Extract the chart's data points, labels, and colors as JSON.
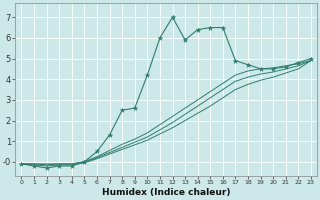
{
  "xlabel": "Humidex (Indice chaleur)",
  "ylabel": "",
  "bg_color": "#cce8e8",
  "line_color": "#2e7d6e",
  "grid_color": "#ffffff",
  "xlim": [
    -0.5,
    23.5
  ],
  "ylim": [
    -0.7,
    7.7
  ],
  "yticks": [
    0,
    1,
    2,
    3,
    4,
    5,
    6,
    7
  ],
  "ytick_labels": [
    "-0",
    "1",
    "2",
    "3",
    "4",
    "5",
    "6",
    "7"
  ],
  "xticks": [
    0,
    1,
    2,
    3,
    4,
    5,
    6,
    7,
    8,
    9,
    10,
    11,
    12,
    13,
    14,
    15,
    16,
    17,
    18,
    19,
    20,
    21,
    22,
    23
  ],
  "series": [
    {
      "x": [
        0,
        1,
        2,
        3,
        4,
        5,
        6,
        7,
        8,
        9,
        10,
        11,
        12,
        13,
        14,
        15,
        16,
        17,
        18,
        19,
        20,
        21,
        22,
        23
      ],
      "y": [
        -0.1,
        -0.2,
        -0.3,
        -0.2,
        -0.2,
        0.0,
        0.5,
        1.3,
        2.5,
        2.6,
        4.2,
        6.0,
        7.0,
        5.9,
        6.4,
        6.5,
        6.5,
        4.9,
        4.7,
        4.5,
        4.5,
        4.6,
        4.8,
        5.0
      ],
      "marker": true
    },
    {
      "x": [
        0,
        1,
        2,
        3,
        4,
        5,
        6,
        7,
        8,
        9,
        10,
        11,
        12,
        13,
        14,
        15,
        16,
        17,
        18,
        19,
        20,
        21,
        22,
        23
      ],
      "y": [
        -0.1,
        -0.1,
        -0.1,
        -0.1,
        -0.1,
        0.0,
        0.25,
        0.55,
        0.85,
        1.1,
        1.4,
        1.8,
        2.2,
        2.6,
        3.0,
        3.4,
        3.8,
        4.2,
        4.4,
        4.5,
        4.55,
        4.65,
        4.75,
        4.9
      ],
      "marker": false
    },
    {
      "x": [
        0,
        1,
        2,
        3,
        4,
        5,
        6,
        7,
        8,
        9,
        10,
        11,
        12,
        13,
        14,
        15,
        16,
        17,
        18,
        19,
        20,
        21,
        22,
        23
      ],
      "y": [
        -0.1,
        -0.1,
        -0.15,
        -0.1,
        -0.1,
        0.0,
        0.2,
        0.45,
        0.7,
        0.95,
        1.2,
        1.55,
        1.9,
        2.3,
        2.7,
        3.1,
        3.5,
        3.9,
        4.1,
        4.25,
        4.35,
        4.5,
        4.65,
        4.9
      ],
      "marker": false
    },
    {
      "x": [
        0,
        1,
        2,
        3,
        4,
        5,
        6,
        7,
        8,
        9,
        10,
        11,
        12,
        13,
        14,
        15,
        16,
        17,
        18,
        19,
        20,
        21,
        22,
        23
      ],
      "y": [
        -0.1,
        -0.15,
        -0.2,
        -0.15,
        -0.15,
        -0.05,
        0.15,
        0.38,
        0.6,
        0.82,
        1.05,
        1.35,
        1.65,
        2.0,
        2.35,
        2.7,
        3.1,
        3.5,
        3.75,
        3.95,
        4.1,
        4.3,
        4.5,
        4.9
      ],
      "marker": false
    }
  ]
}
